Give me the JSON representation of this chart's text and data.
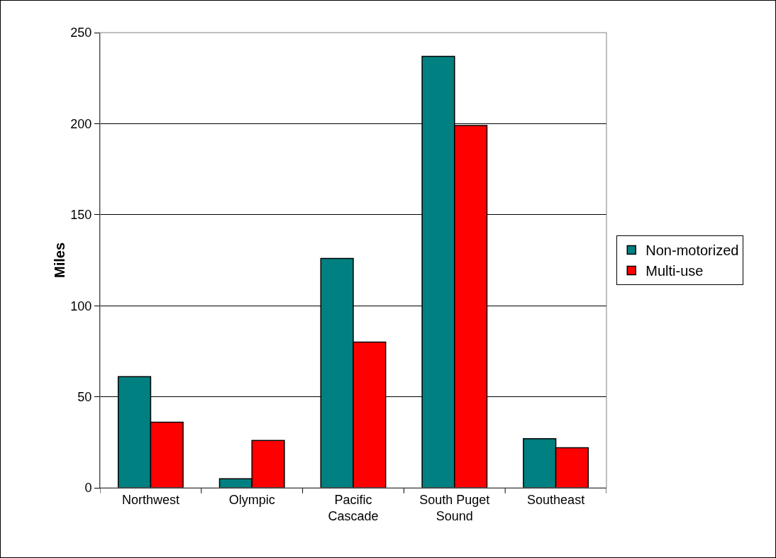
{
  "chart_data": {
    "type": "bar",
    "ylabel": "Miles",
    "categories": [
      "Northwest",
      "Olympic",
      "Pacific Cascade",
      "South Puget Sound",
      "Southeast"
    ],
    "series": [
      {
        "name": "Non-motorized",
        "color": "#008080",
        "values": [
          61,
          5,
          126,
          237,
          27
        ]
      },
      {
        "name": "Multi-use",
        "color": "#ff0000",
        "values": [
          36,
          26,
          80,
          199,
          22
        ]
      }
    ],
    "ylim": [
      0,
      250
    ],
    "yticks": [
      0,
      50,
      100,
      150,
      200,
      250
    ],
    "grid": "y",
    "legend": "right"
  }
}
